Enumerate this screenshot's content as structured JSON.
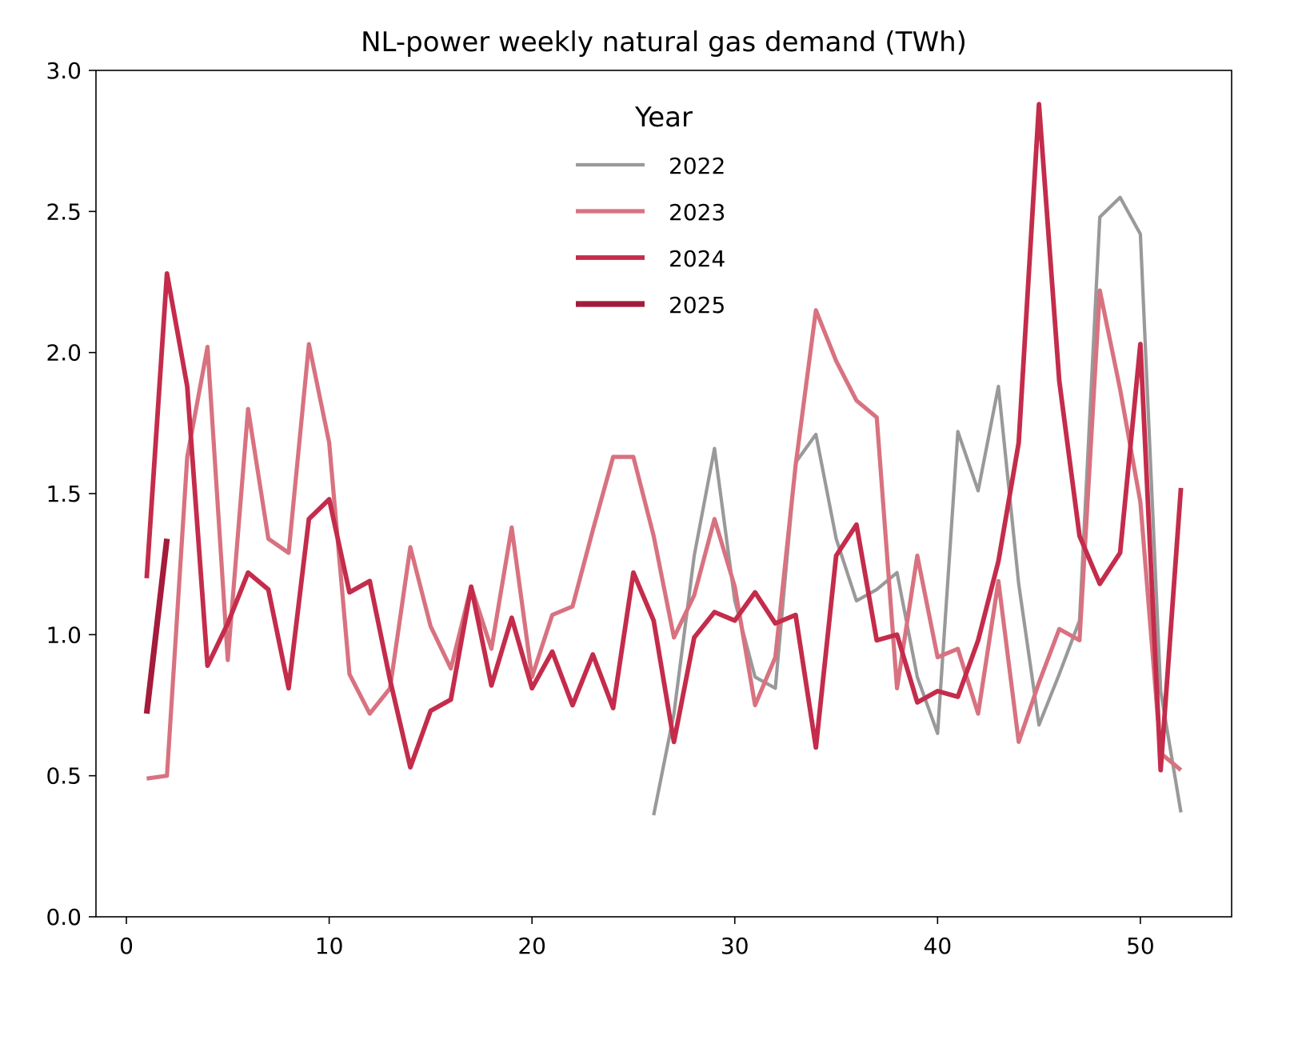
{
  "chart_data": {
    "type": "line",
    "title": "NL-power weekly natural gas demand (TWh)",
    "xlabel": "",
    "ylabel": "",
    "xlim": [
      -1.5,
      54.5
    ],
    "ylim": [
      0.0,
      3.0
    ],
    "x_ticks": [
      0,
      10,
      20,
      30,
      40,
      50
    ],
    "y_ticks": [
      "0.0",
      "0.5",
      "1.0",
      "1.5",
      "2.0",
      "2.5",
      "3.0"
    ],
    "grid": false,
    "legend": {
      "title": "Year",
      "placement": "upper-center"
    },
    "series": [
      {
        "name": "2022",
        "color": "#999999",
        "x": [
          26,
          27,
          28,
          29,
          30,
          31,
          32,
          33,
          34,
          35,
          36,
          37,
          38,
          39,
          40,
          41,
          42,
          43,
          44,
          45,
          46,
          47,
          48,
          49,
          50,
          51,
          52
        ],
        "values": [
          0.36,
          0.72,
          1.28,
          1.66,
          1.12,
          0.85,
          0.81,
          1.61,
          1.71,
          1.34,
          1.12,
          1.16,
          1.22,
          0.85,
          0.65,
          1.72,
          1.51,
          1.88,
          1.18,
          0.68,
          0.86,
          1.05,
          2.48,
          2.55,
          2.42,
          0.8,
          0.37
        ]
      },
      {
        "name": "2023",
        "color": "#d87280",
        "x": [
          1,
          2,
          3,
          4,
          5,
          6,
          7,
          8,
          9,
          10,
          11,
          12,
          13,
          14,
          15,
          16,
          17,
          18,
          19,
          20,
          21,
          22,
          23,
          24,
          25,
          26,
          27,
          28,
          29,
          30,
          31,
          32,
          33,
          34,
          35,
          36,
          37,
          38,
          39,
          40,
          41,
          42,
          43,
          44,
          45,
          46,
          47,
          48,
          49,
          50,
          51,
          52
        ],
        "values": [
          0.49,
          0.5,
          1.63,
          2.02,
          0.91,
          1.8,
          1.34,
          1.29,
          2.03,
          1.68,
          0.86,
          0.72,
          0.81,
          1.31,
          1.03,
          0.88,
          1.17,
          0.95,
          1.38,
          0.85,
          1.07,
          1.1,
          1.37,
          1.63,
          1.63,
          1.35,
          0.99,
          1.14,
          1.41,
          1.17,
          0.75,
          0.92,
          1.6,
          2.15,
          1.97,
          1.83,
          1.77,
          0.81,
          1.28,
          0.92,
          0.95,
          0.72,
          1.19,
          0.62,
          0.83,
          1.02,
          0.98,
          2.22,
          1.87,
          1.47,
          0.58,
          0.52
        ]
      },
      {
        "name": "2024",
        "color": "#c42c4b",
        "x": [
          1,
          2,
          3,
          4,
          5,
          6,
          7,
          8,
          9,
          10,
          11,
          12,
          13,
          14,
          15,
          16,
          17,
          18,
          19,
          20,
          21,
          22,
          23,
          24,
          25,
          26,
          27,
          28,
          29,
          30,
          31,
          32,
          33,
          34,
          35,
          36,
          37,
          38,
          39,
          40,
          41,
          42,
          43,
          44,
          45,
          46,
          47,
          48,
          49,
          50,
          51,
          52
        ],
        "values": [
          1.2,
          2.28,
          1.88,
          0.89,
          1.04,
          1.22,
          1.16,
          0.81,
          1.41,
          1.48,
          1.15,
          1.19,
          0.84,
          0.53,
          0.73,
          0.77,
          1.17,
          0.82,
          1.06,
          0.81,
          0.94,
          0.75,
          0.93,
          0.74,
          1.22,
          1.05,
          0.62,
          0.99,
          1.08,
          1.05,
          1.15,
          1.04,
          1.07,
          0.6,
          1.28,
          1.39,
          0.98,
          1.0,
          0.76,
          0.8,
          0.78,
          0.98,
          1.26,
          1.68,
          2.88,
          1.9,
          1.35,
          1.18,
          1.29,
          2.03,
          0.52,
          1.52
        ]
      },
      {
        "name": "2025",
        "color": "#a41b3b",
        "x": [
          1,
          2
        ],
        "values": [
          0.72,
          1.34
        ]
      }
    ]
  }
}
